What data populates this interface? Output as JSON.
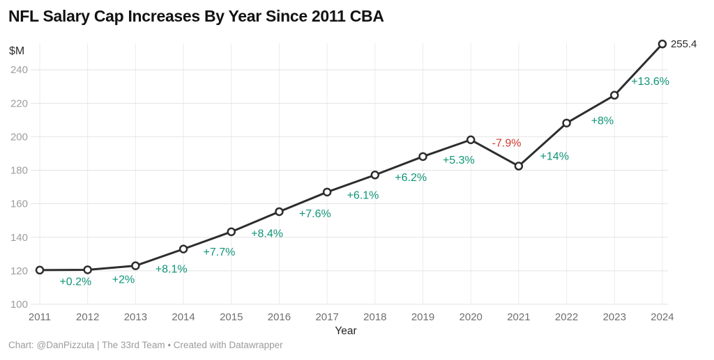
{
  "title": "NFL Salary Cap Increases By Year Since 2011 CBA",
  "footer": {
    "credit": "Chart: @DanPizzuta | The 33rd Team • Created with Datawrapper"
  },
  "colors": {
    "title": "#121212",
    "line": "#2d2d2d",
    "point_fill": "#ffffff",
    "point_stroke": "#2d2d2d",
    "positive_label": "#0e9577",
    "negative_label": "#cf3a32",
    "grid_h": "#e3e3e3",
    "grid_v": "#ebebeb",
    "y_tick_text": "#9d9d9d",
    "x_tick_text": "#6f6f6f",
    "y_unit_text": "#2e2e2e",
    "x_axis_title_text": "#222222",
    "value_label_text": "#2b2b2b",
    "footer_text": "#9b9b9b"
  },
  "chart_data": {
    "type": "line",
    "title": "NFL Salary Cap Increases By Year Since 2011 CBA",
    "xlabel": "Year",
    "ylabel": "",
    "y_unit": "$M",
    "x": [
      "2011",
      "2012",
      "2013",
      "2014",
      "2015",
      "2016",
      "2017",
      "2018",
      "2019",
      "2020",
      "2021",
      "2022",
      "2023",
      "2024"
    ],
    "values": [
      120.4,
      120.6,
      123.0,
      133.0,
      143.3,
      155.3,
      167.0,
      177.2,
      188.2,
      198.2,
      182.5,
      208.2,
      224.8,
      255.4
    ],
    "pct_change_labels": [
      "",
      "+0.2%",
      "+2%",
      "+8.1%",
      "+7.7%",
      "+8.4%",
      "+7.6%",
      "+6.1%",
      "+6.2%",
      "+5.3%",
      "-7.9%",
      "+14%",
      "+8%",
      "+13.6%"
    ],
    "end_value_label": "255.4",
    "ylim": [
      100,
      260
    ],
    "yticks": [
      100,
      120,
      140,
      160,
      180,
      200,
      220,
      240
    ],
    "grid": true,
    "legend_position": "none"
  }
}
